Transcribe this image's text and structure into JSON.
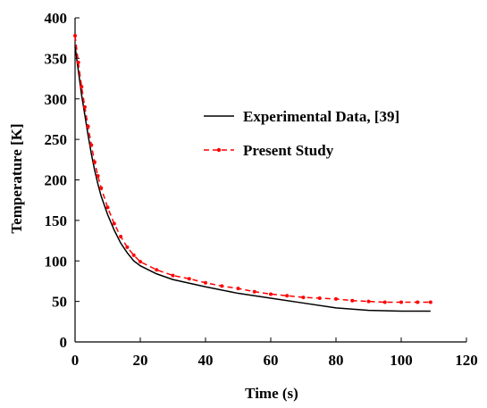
{
  "chart_data": {
    "type": "line",
    "xlabel": "Time (s)",
    "ylabel": "Temperature [K]",
    "xlim": [
      0,
      120
    ],
    "ylim": [
      0,
      400
    ],
    "xticks": [
      0,
      20,
      40,
      60,
      80,
      100,
      120
    ],
    "yticks": [
      0,
      50,
      100,
      150,
      200,
      250,
      300,
      350,
      400
    ],
    "grid": false,
    "legend_position": "right-center",
    "series": [
      {
        "name": "Experimental Data, [39]",
        "color": "#000000",
        "style": "solid",
        "x": [
          0,
          1,
          2,
          3,
          4,
          5,
          6,
          7,
          8,
          10,
          12,
          14,
          16,
          18,
          20,
          25,
          30,
          40,
          50,
          60,
          70,
          80,
          90,
          100,
          109
        ],
        "y": [
          365,
          335,
          305,
          280,
          255,
          232,
          212,
          195,
          180,
          157,
          138,
          122,
          110,
          100,
          94,
          84,
          77,
          68,
          60,
          54,
          48,
          42,
          39,
          38,
          38
        ]
      },
      {
        "name": "Present Study",
        "color": "#ff0000",
        "style": "dashed",
        "marker": "dot",
        "x": [
          0,
          1,
          2,
          3,
          4,
          5,
          6,
          7,
          8,
          10,
          12,
          14,
          16,
          18,
          20,
          25,
          30,
          35,
          40,
          45,
          50,
          55,
          60,
          65,
          70,
          75,
          80,
          85,
          90,
          95,
          100,
          105,
          109
        ],
        "y": [
          378,
          345,
          315,
          290,
          266,
          243,
          222,
          205,
          190,
          166,
          146,
          130,
          117,
          107,
          99,
          89,
          82,
          78,
          73,
          69,
          66,
          62,
          59,
          57,
          55,
          54,
          53,
          51,
          50,
          49,
          49,
          49,
          49
        ]
      }
    ]
  }
}
